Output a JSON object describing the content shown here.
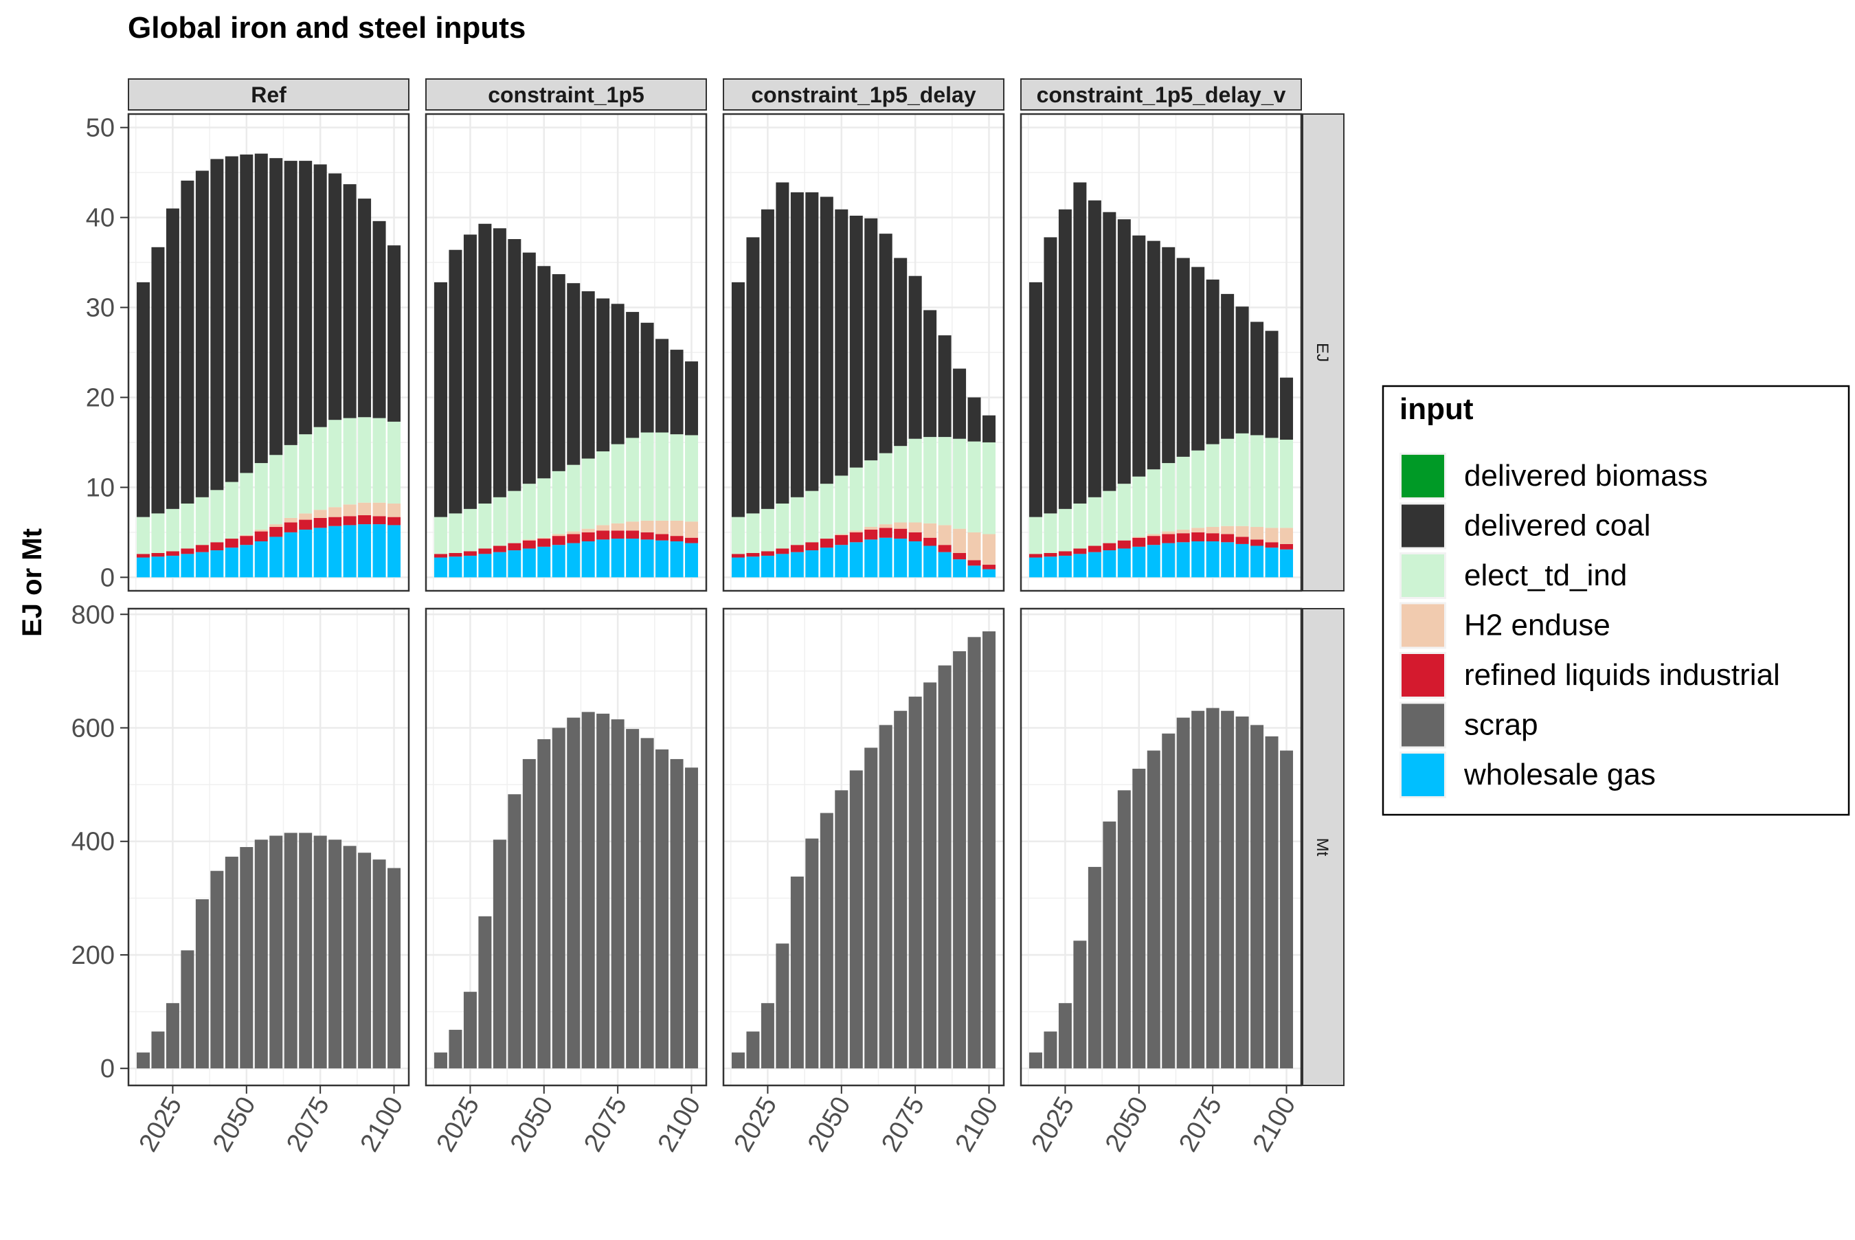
{
  "chart_data": {
    "type": "bar",
    "stacked": true,
    "title": "Global  iron and steel inputs",
    "ylabel": "EJ or Mt",
    "xlabel": "",
    "x_ticks": [
      "2025",
      "2050",
      "2075",
      "2100"
    ],
    "x": [
      2015,
      2020,
      2025,
      2030,
      2035,
      2040,
      2045,
      2050,
      2055,
      2060,
      2065,
      2070,
      2075,
      2080,
      2085,
      2090,
      2095,
      2100
    ],
    "xlim": [
      2010,
      2105
    ],
    "scenarios": [
      "Ref",
      "constraint_1p5",
      "constraint_1p5_delay",
      "constraint_1p5_delay_v"
    ],
    "units": [
      "EJ",
      "Mt"
    ],
    "y_ticks": {
      "EJ": [
        "0",
        "10",
        "20",
        "30",
        "40",
        "50"
      ],
      "Mt": [
        "0",
        "200",
        "400",
        "600",
        "800"
      ]
    },
    "ylim": {
      "EJ": [
        -1.5,
        51.5
      ],
      "Mt": [
        -30,
        810
      ]
    },
    "grid": true,
    "legend": {
      "title": "input",
      "placement": "right",
      "entries": [
        {
          "name": "delivered biomass",
          "color": "#009a26"
        },
        {
          "name": "delivered coal",
          "color": "#333333"
        },
        {
          "name": "elect_td_ind",
          "color": "#cdf3d3"
        },
        {
          "name": "H2 enduse",
          "color": "#f1cbaf"
        },
        {
          "name": "refined liquids industrial",
          "color": "#d41a2e"
        },
        {
          "name": "scrap",
          "color": "#666666"
        },
        {
          "name": "wholesale gas",
          "color": "#00bfff"
        }
      ]
    },
    "panels": [
      {
        "scenario": "Ref",
        "unit": "EJ",
        "series": [
          {
            "name": "wholesale gas",
            "values": [
              2.2,
              2.3,
              2.4,
              2.6,
              2.8,
              3.0,
              3.3,
              3.6,
              4.0,
              4.5,
              5.0,
              5.3,
              5.5,
              5.7,
              5.8,
              5.9,
              5.9,
              5.8
            ]
          },
          {
            "name": "refined liquids industrial",
            "values": [
              0.4,
              0.4,
              0.5,
              0.6,
              0.8,
              0.9,
              1.0,
              1.0,
              1.1,
              1.1,
              1.1,
              1.1,
              1.1,
              1.0,
              1.0,
              1.0,
              0.9,
              0.9
            ]
          },
          {
            "name": "H2 enduse",
            "values": [
              0,
              0,
              0,
              0,
              0,
              0,
              0,
              0.1,
              0.2,
              0.3,
              0.5,
              0.7,
              0.9,
              1.1,
              1.3,
              1.4,
              1.5,
              1.5
            ]
          },
          {
            "name": "elect_td_ind",
            "values": [
              4.1,
              4.4,
              4.7,
              5.0,
              5.3,
              5.8,
              6.3,
              6.9,
              7.4,
              7.7,
              8.1,
              8.8,
              9.2,
              9.7,
              9.6,
              9.5,
              9.4,
              9.1
            ]
          },
          {
            "name": "delivered coal",
            "values": [
              26.1,
              29.6,
              33.4,
              35.9,
              36.3,
              36.8,
              36.2,
              35.4,
              34.4,
              33.0,
              31.6,
              30.4,
              29.2,
              27.4,
              26.0,
              24.3,
              21.9,
              19.6
            ]
          }
        ]
      },
      {
        "scenario": "constraint_1p5",
        "unit": "EJ",
        "series": [
          {
            "name": "wholesale gas",
            "values": [
              2.2,
              2.3,
              2.4,
              2.6,
              2.8,
              3.0,
              3.2,
              3.4,
              3.6,
              3.8,
              4.0,
              4.2,
              4.3,
              4.3,
              4.2,
              4.1,
              4.0,
              3.8
            ]
          },
          {
            "name": "refined liquids industrial",
            "values": [
              0.4,
              0.4,
              0.5,
              0.6,
              0.7,
              0.8,
              0.9,
              0.9,
              1.0,
              1.0,
              1.0,
              1.0,
              0.9,
              0.9,
              0.8,
              0.7,
              0.6,
              0.6
            ]
          },
          {
            "name": "H2 enduse",
            "values": [
              0,
              0,
              0,
              0,
              0,
              0,
              0.1,
              0.1,
              0.2,
              0.3,
              0.4,
              0.6,
              0.8,
              1.0,
              1.3,
              1.5,
              1.7,
              1.8
            ]
          },
          {
            "name": "elect_td_ind",
            "values": [
              4.1,
              4.4,
              4.7,
              5.0,
              5.4,
              5.8,
              6.2,
              6.6,
              7.0,
              7.4,
              7.8,
              8.2,
              8.8,
              9.3,
              9.8,
              9.8,
              9.6,
              9.6
            ]
          },
          {
            "name": "delivered coal",
            "values": [
              26.1,
              29.3,
              30.5,
              31.1,
              29.9,
              28.0,
              25.7,
              23.6,
              21.9,
              20.2,
              18.6,
              17.0,
              15.6,
              14.0,
              12.2,
              10.4,
              9.4,
              8.2
            ]
          }
        ]
      },
      {
        "scenario": "constraint_1p5_delay",
        "unit": "EJ",
        "series": [
          {
            "name": "wholesale gas",
            "values": [
              2.2,
              2.3,
              2.4,
              2.6,
              2.8,
              3.0,
              3.3,
              3.6,
              3.9,
              4.2,
              4.4,
              4.3,
              4.0,
              3.5,
              2.8,
              2.0,
              1.3,
              0.9
            ]
          },
          {
            "name": "refined liquids industrial",
            "values": [
              0.4,
              0.4,
              0.5,
              0.6,
              0.8,
              0.9,
              1.0,
              1.1,
              1.1,
              1.1,
              1.1,
              1.1,
              1.0,
              0.9,
              0.8,
              0.7,
              0.6,
              0.5
            ]
          },
          {
            "name": "H2 enduse",
            "values": [
              0,
              0,
              0,
              0,
              0,
              0,
              0,
              0.1,
              0.2,
              0.3,
              0.4,
              0.7,
              1.1,
              1.6,
              2.2,
              2.7,
              3.1,
              3.4
            ]
          },
          {
            "name": "elect_td_ind",
            "values": [
              4.1,
              4.4,
              4.7,
              5.0,
              5.3,
              5.7,
              6.1,
              6.5,
              7.0,
              7.4,
              7.9,
              8.5,
              9.3,
              9.6,
              9.8,
              10.0,
              10.1,
              10.2
            ]
          },
          {
            "name": "delivered coal",
            "values": [
              26.1,
              30.7,
              33.3,
              35.7,
              33.9,
              33.2,
              31.9,
              29.6,
              28.0,
              26.9,
              24.4,
              20.9,
              18.1,
              14.1,
              11.3,
              7.8,
              4.9,
              3.0
            ]
          }
        ]
      },
      {
        "scenario": "constraint_1p5_delay_v",
        "unit": "EJ",
        "series": [
          {
            "name": "wholesale gas",
            "values": [
              2.2,
              2.3,
              2.4,
              2.6,
              2.8,
              3.0,
              3.2,
              3.4,
              3.6,
              3.8,
              3.9,
              4.0,
              4.0,
              3.9,
              3.7,
              3.5,
              3.3,
              3.1
            ]
          },
          {
            "name": "refined liquids industrial",
            "values": [
              0.4,
              0.4,
              0.5,
              0.6,
              0.7,
              0.8,
              0.9,
              1.0,
              1.0,
              1.0,
              1.0,
              1.0,
              0.9,
              0.9,
              0.8,
              0.7,
              0.6,
              0.6
            ]
          },
          {
            "name": "H2 enduse",
            "values": [
              0,
              0,
              0,
              0,
              0,
              0,
              0,
              0.1,
              0.2,
              0.3,
              0.4,
              0.5,
              0.7,
              0.9,
              1.2,
              1.4,
              1.6,
              1.8
            ]
          },
          {
            "name": "elect_td_ind",
            "values": [
              4.1,
              4.4,
              4.7,
              5.0,
              5.4,
              5.8,
              6.3,
              6.7,
              7.2,
              7.6,
              8.1,
              8.6,
              9.2,
              9.7,
              10.3,
              10.2,
              10.0,
              9.8
            ]
          },
          {
            "name": "delivered coal",
            "values": [
              26.1,
              30.7,
              33.3,
              35.7,
              33.0,
              31.0,
              29.4,
              26.8,
              25.4,
              24.0,
              22.1,
              20.4,
              18.3,
              16.1,
              14.1,
              12.6,
              11.9,
              6.9
            ]
          }
        ]
      },
      {
        "scenario": "Ref",
        "unit": "Mt",
        "series": [
          {
            "name": "scrap",
            "values": [
              28,
              65,
              115,
              208,
              298,
              348,
              373,
              390,
              403,
              410,
              415,
              415,
              410,
              403,
              392,
              380,
              368,
              353
            ]
          }
        ]
      },
      {
        "scenario": "constraint_1p5",
        "unit": "Mt",
        "series": [
          {
            "name": "scrap",
            "values": [
              28,
              68,
              135,
              268,
              403,
              483,
              545,
              580,
              600,
              618,
              628,
              625,
              615,
              598,
              582,
              562,
              545,
              530
            ]
          }
        ]
      },
      {
        "scenario": "constraint_1p5_delay",
        "unit": "Mt",
        "series": [
          {
            "name": "scrap",
            "values": [
              28,
              65,
              115,
              220,
              338,
              405,
              450,
              490,
              525,
              565,
              605,
              630,
              655,
              680,
              710,
              735,
              760,
              770
            ]
          }
        ]
      },
      {
        "scenario": "constraint_1p5_delay_v",
        "unit": "Mt",
        "series": [
          {
            "name": "scrap",
            "values": [
              28,
              65,
              115,
              225,
              355,
              435,
              490,
              528,
              560,
              590,
              618,
              630,
              635,
              630,
              620,
              605,
              585,
              560
            ]
          }
        ]
      }
    ]
  }
}
